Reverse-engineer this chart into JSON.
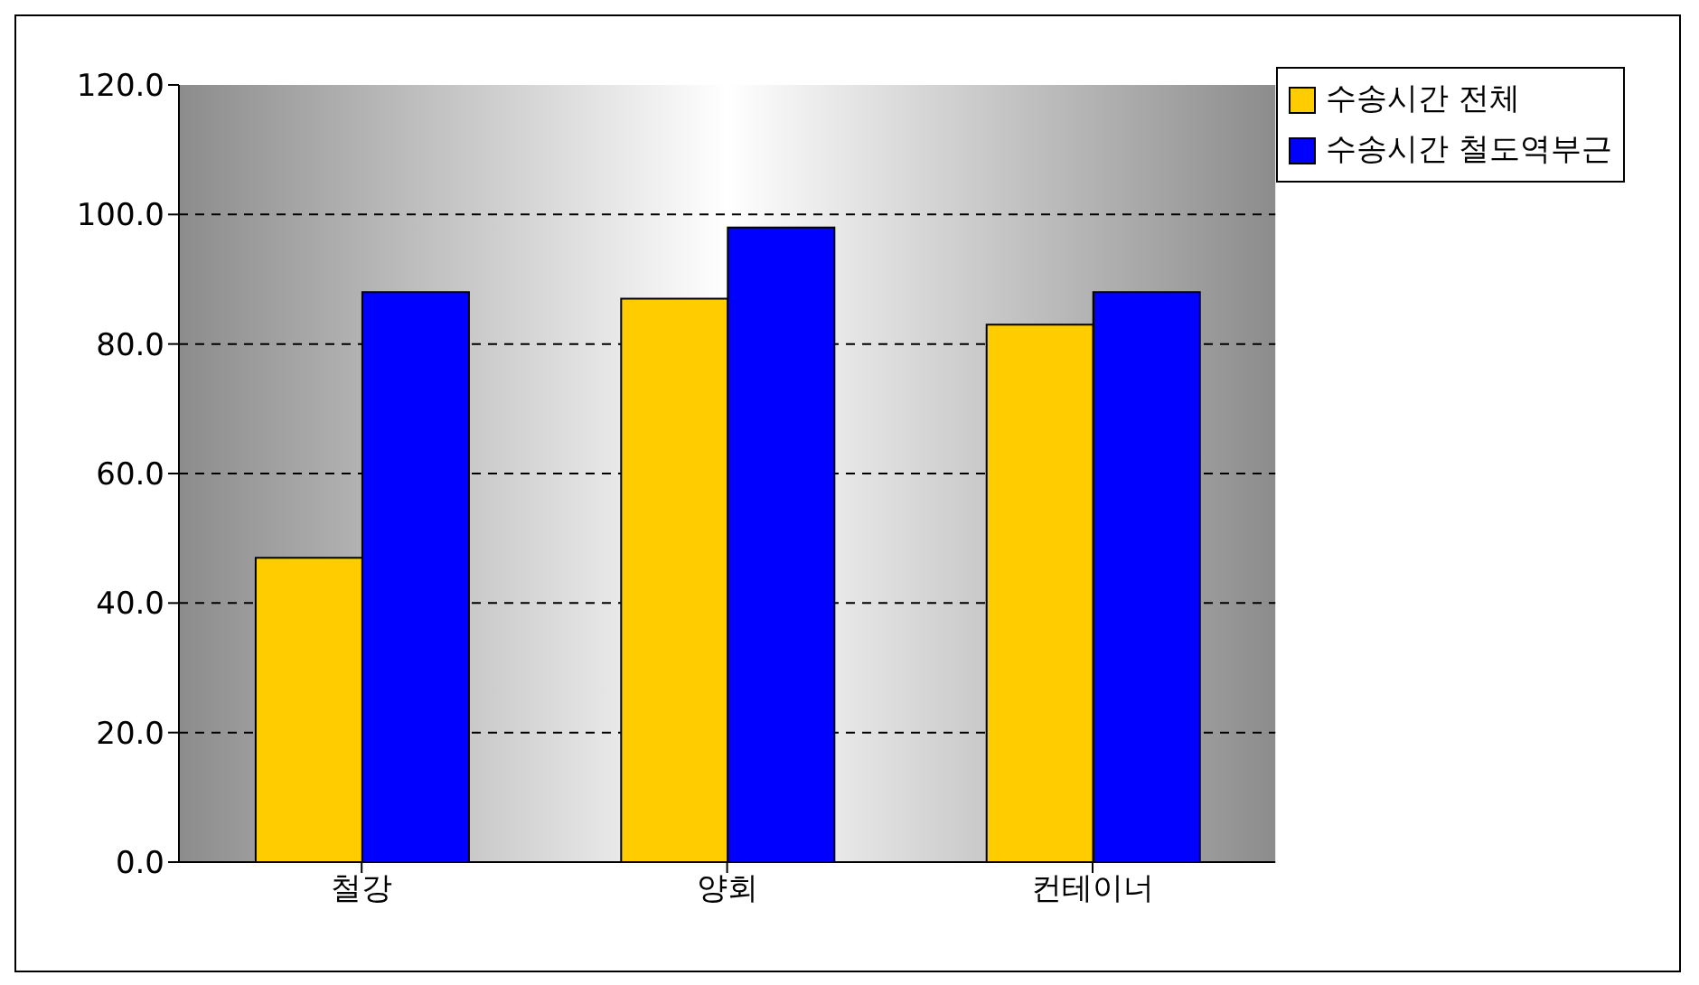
{
  "chart_data": {
    "type": "bar",
    "categories": [
      "철강",
      "양회",
      "컨테이너"
    ],
    "series": [
      {
        "name": "수송시간 전체",
        "color": "#ffcc00",
        "values": [
          47,
          87,
          83
        ]
      },
      {
        "name": "수송시간 철도역부근",
        "color": "#0000ff",
        "values": [
          88,
          98,
          88
        ]
      }
    ],
    "ylim": [
      0,
      120
    ],
    "yticks": [
      {
        "value": 0,
        "label": "0.0"
      },
      {
        "value": 20,
        "label": "20.0"
      },
      {
        "value": 40,
        "label": "40.0"
      },
      {
        "value": 60,
        "label": "60.0"
      },
      {
        "value": 80,
        "label": "80.0"
      },
      {
        "value": 100,
        "label": "100.0"
      },
      {
        "value": 120,
        "label": "120.0"
      }
    ],
    "grid": "y",
    "legend": "top right"
  }
}
